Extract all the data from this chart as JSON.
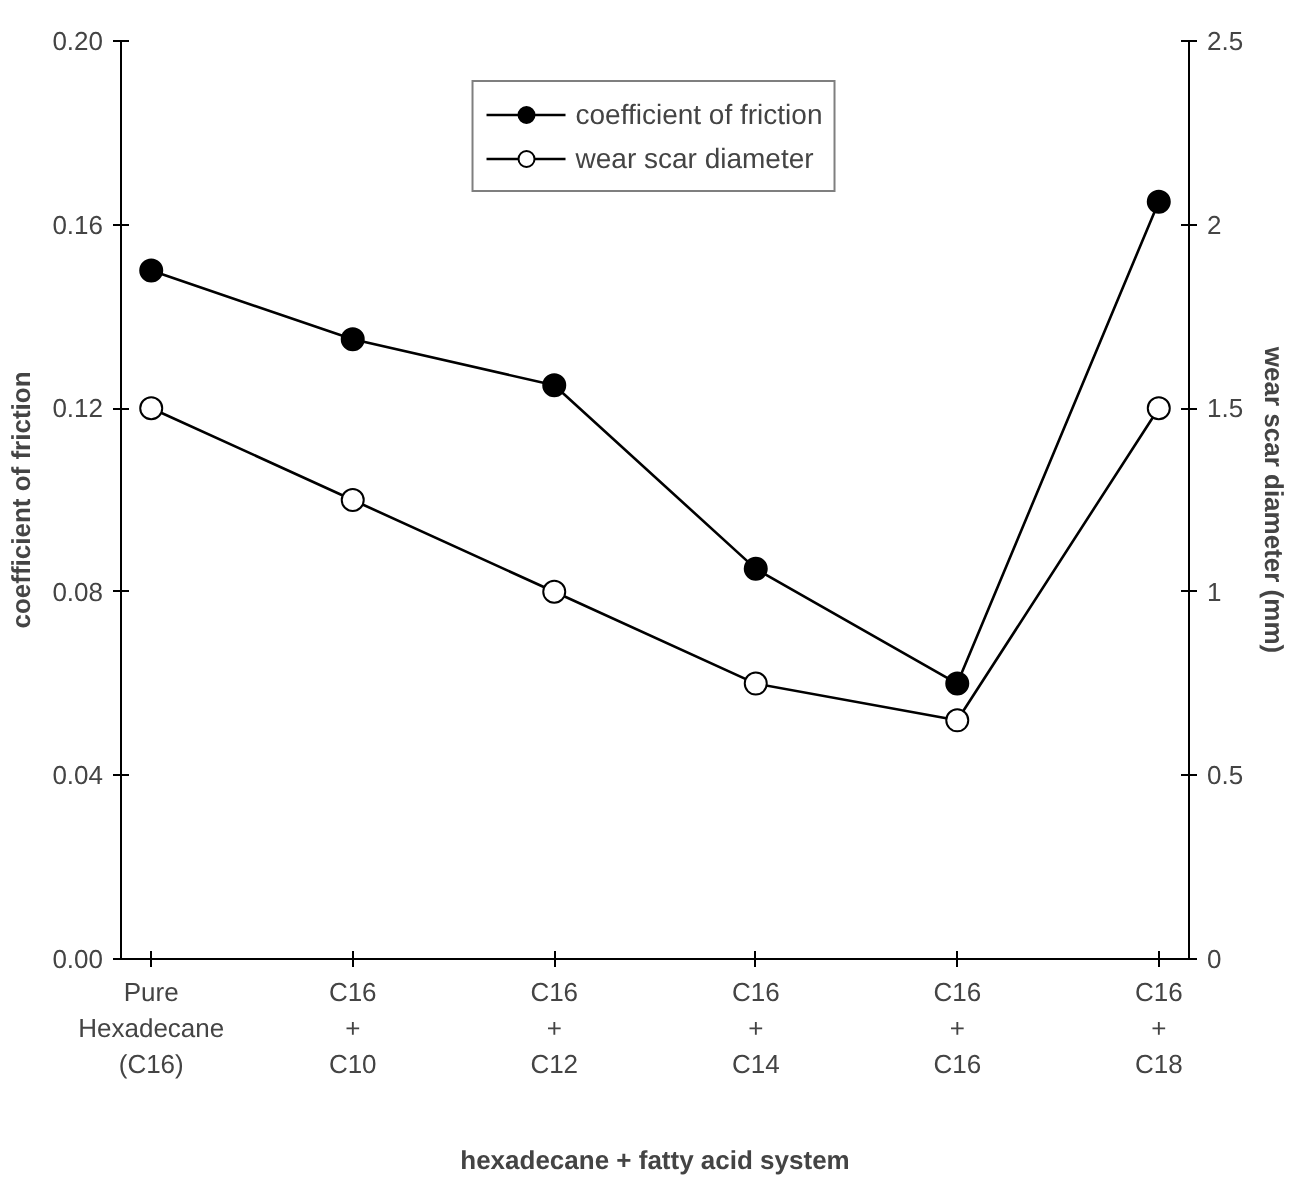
{
  "chart_data": {
    "type": "line",
    "xlabel": "hexadecane + fatty acid system",
    "ylabel": "coefficient of friction",
    "y2label": "wear scar diameter (mm)",
    "categories": [
      "Pure\nHexadecane\n(C16)",
      "C16\n+\nC10",
      "C16\n+\nC12",
      "C16\n+\nC14",
      "C16\n+\nC16",
      "C16\n+\nC18"
    ],
    "series": [
      {
        "name": "coefficient of friction",
        "color": "#000000",
        "values": [
          0.15,
          0.135,
          0.125,
          0.085,
          0.06,
          0.165
        ]
      },
      {
        "name": "wear scar diameter",
        "color": "#000000",
        "axis": "y2",
        "values": [
          1.5,
          1.25,
          1.0,
          0.75,
          0.65,
          1.5
        ]
      }
    ],
    "ylim": [
      0,
      0.2
    ],
    "yticks": [
      {
        "value": 0,
        "label": "0.00"
      },
      {
        "value": 0.04,
        "label": "0.04"
      },
      {
        "value": 0.08,
        "label": "0.08"
      },
      {
        "value": 0.12,
        "label": "0.12"
      },
      {
        "value": 0.16,
        "label": "0.16"
      },
      {
        "value": 0.2,
        "label": "0.20"
      }
    ],
    "y2lim": [
      0,
      2.5
    ],
    "y2ticks": [
      0,
      0.5,
      1,
      1.5,
      2,
      2.5
    ],
    "marker": "circle",
    "line_style": "solid",
    "grid": false,
    "legend": "top"
  }
}
